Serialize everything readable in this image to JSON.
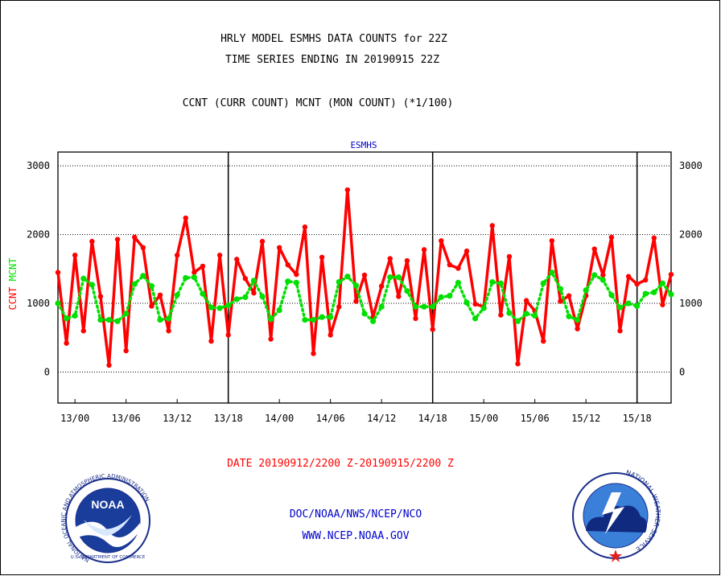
{
  "header": {
    "title_line1": "HRLY MODEL ESMHS DATA COUNTS for 22Z",
    "title_line2": "TIME SERIES ENDING IN 20190915 22Z",
    "subtitle": "CCNT (CURR COUNT) MCNT (MON COUNT) (*1/100)"
  },
  "footer": {
    "date_range": "DATE 20190912/2200 Z-20190915/2200 Z",
    "org_line": "DOC/NOAA/NWS/NCEP/NCO",
    "url": "WWW.NCEP.NOAA.GOV"
  },
  "logos": {
    "noaa_text": "NOAA",
    "noaa_ring": "NATIONAL OCEANIC AND ATMOSPHERIC ADMINISTRATION",
    "noaa_ring_bottom": "U.S. DEPARTMENT OF COMMERCE",
    "nws_ring": "NATIONAL WEATHER SERVICE"
  },
  "colors": {
    "ccnt": "#ff0000",
    "mcnt": "#00e000",
    "blue_text": "#0000cc",
    "red_text": "#ff0000"
  },
  "chart_data": {
    "type": "line",
    "panel_title": "ESMHS",
    "ylabel_red": "CCNT",
    "ylabel_green": "MCNT",
    "ylim": [
      -450,
      3200
    ],
    "y_ticks": [
      0,
      1000,
      2000,
      3000
    ],
    "y_tick_labels": [
      "0",
      "1000",
      "2000",
      "3000"
    ],
    "grid": true,
    "x_hours_start": -2,
    "x_hours_end": 70,
    "x_ticks": [
      {
        "h": 0,
        "label": "13/00"
      },
      {
        "h": 6,
        "label": "13/06"
      },
      {
        "h": 12,
        "label": "13/12"
      },
      {
        "h": 18,
        "label": "13/18"
      },
      {
        "h": 24,
        "label": "14/00"
      },
      {
        "h": 30,
        "label": "14/06"
      },
      {
        "h": 36,
        "label": "14/12"
      },
      {
        "h": 42,
        "label": "14/18"
      },
      {
        "h": 48,
        "label": "15/00"
      },
      {
        "h": 54,
        "label": "15/06"
      },
      {
        "h": 60,
        "label": "15/12"
      },
      {
        "h": 66,
        "label": "15/18"
      }
    ],
    "day_boundaries": [
      18,
      42,
      66
    ],
    "series": [
      {
        "name": "CCNT",
        "color": "#ff0000",
        "style": "solid",
        "values": [
          1450,
          420,
          1700,
          600,
          1900,
          1100,
          100,
          1930,
          310,
          1960,
          1810,
          960,
          1120,
          600,
          1700,
          2240,
          1450,
          1540,
          450,
          1700,
          540,
          1640,
          1360,
          1150,
          1900,
          480,
          1810,
          1560,
          1420,
          2110,
          270,
          1670,
          540,
          950,
          2650,
          1030,
          1410,
          800,
          1250,
          1650,
          1100,
          1620,
          780,
          1780,
          620,
          1910,
          1560,
          1510,
          1760,
          990,
          950,
          2130,
          830,
          1680,
          120,
          1040,
          890,
          450,
          1910,
          1030,
          1110,
          630,
          1110,
          1790,
          1410,
          1960,
          600,
          1390,
          1280,
          1340,
          1950,
          980,
          1420
        ]
      },
      {
        "name": "MCNT",
        "color": "#00e000",
        "style": "dotted",
        "values": [
          1000,
          780,
          820,
          1360,
          1270,
          760,
          760,
          740,
          850,
          1280,
          1400,
          1250,
          760,
          780,
          1120,
          1370,
          1380,
          1140,
          940,
          930,
          970,
          1060,
          1090,
          1330,
          1100,
          770,
          900,
          1320,
          1300,
          760,
          760,
          800,
          800,
          1310,
          1390,
          1260,
          850,
          740,
          950,
          1380,
          1380,
          1180,
          950,
          950,
          950,
          1090,
          1110,
          1300,
          1010,
          780,
          930,
          1310,
          1290,
          860,
          740,
          850,
          820,
          1290,
          1450,
          1210,
          810,
          760,
          1190,
          1410,
          1340,
          1120,
          940,
          1000,
          960,
          1140,
          1160,
          1290,
          1130
        ]
      }
    ]
  }
}
